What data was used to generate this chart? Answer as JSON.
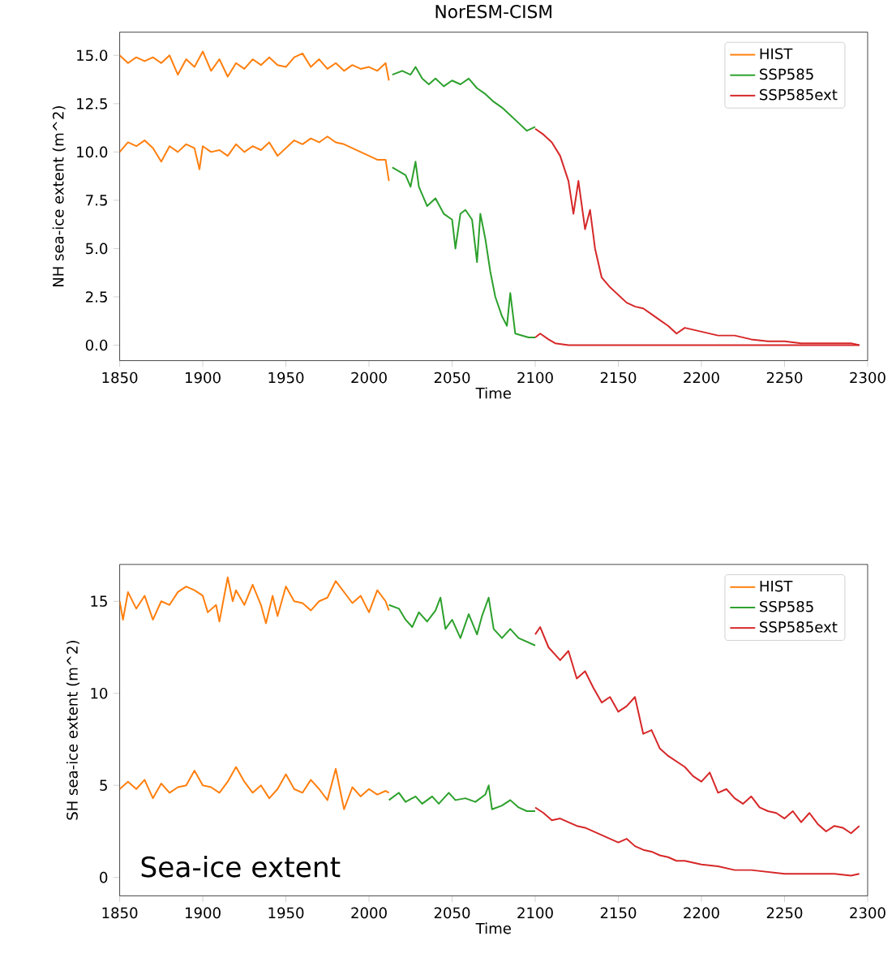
{
  "chart_data": [
    {
      "type": "line",
      "title": "NorESM-CISM",
      "xlabel": "Time",
      "ylabel": "NH sea-ice extent (m^2)",
      "xlim": [
        1850,
        2300
      ],
      "ylim": [
        -0.8,
        16.2
      ],
      "xticks": [
        1850,
        1900,
        1950,
        2000,
        2050,
        2100,
        2150,
        2200,
        2250,
        2300
      ],
      "yticks": [
        {
          "value": 0,
          "label": "0.0"
        },
        {
          "value": 2.5,
          "label": "2.5"
        },
        {
          "value": 5,
          "label": "5.0"
        },
        {
          "value": 7.5,
          "label": "7.5"
        },
        {
          "value": 10,
          "label": "10.0"
        },
        {
          "value": 12.5,
          "label": "12.5"
        },
        {
          "value": 15,
          "label": "15.0"
        }
      ],
      "legend": "top right",
      "series": [
        {
          "name": "HIST",
          "color": "#ff7f0e",
          "x": [
            1850,
            1855,
            1860,
            1865,
            1870,
            1875,
            1880,
            1885,
            1890,
            1895,
            1900,
            1905,
            1910,
            1915,
            1920,
            1925,
            1930,
            1935,
            1940,
            1945,
            1950,
            1955,
            1960,
            1965,
            1970,
            1975,
            1980,
            1985,
            1990,
            1995,
            2000,
            2005,
            2010,
            2012
          ],
          "values": [
            15.0,
            14.6,
            14.9,
            14.7,
            14.9,
            14.6,
            15.0,
            14.0,
            14.8,
            14.4,
            15.2,
            14.2,
            14.8,
            13.9,
            14.6,
            14.3,
            14.8,
            14.5,
            14.9,
            14.5,
            14.4,
            14.9,
            15.1,
            14.4,
            14.8,
            14.3,
            14.6,
            14.2,
            14.5,
            14.3,
            14.4,
            14.2,
            14.6,
            13.7
          ]
        },
        {
          "color": "#ff7f0e",
          "x": [
            1850,
            1855,
            1860,
            1865,
            1870,
            1875,
            1880,
            1885,
            1890,
            1895,
            1898,
            1900,
            1905,
            1910,
            1915,
            1920,
            1925,
            1930,
            1935,
            1940,
            1945,
            1950,
            1955,
            1960,
            1965,
            1970,
            1975,
            1980,
            1985,
            1990,
            1995,
            2000,
            2005,
            2010,
            2012
          ],
          "values": [
            10.0,
            10.5,
            10.3,
            10.6,
            10.2,
            9.5,
            10.3,
            10.0,
            10.4,
            10.2,
            9.1,
            10.3,
            10.0,
            10.1,
            9.8,
            10.4,
            10.0,
            10.3,
            10.1,
            10.5,
            9.8,
            10.2,
            10.6,
            10.4,
            10.7,
            10.5,
            10.8,
            10.5,
            10.4,
            10.2,
            10.0,
            9.8,
            9.6,
            9.6,
            8.5
          ]
        },
        {
          "name": "SSP585",
          "color": "#2ca02c",
          "x": [
            2014,
            2020,
            2025,
            2028,
            2032,
            2036,
            2040,
            2045,
            2050,
            2055,
            2060,
            2065,
            2070,
            2075,
            2080,
            2085,
            2090,
            2095,
            2100
          ],
          "values": [
            14.0,
            14.2,
            14.0,
            14.4,
            13.8,
            13.5,
            13.8,
            13.4,
            13.7,
            13.5,
            13.8,
            13.3,
            13.0,
            12.6,
            12.3,
            11.9,
            11.5,
            11.1,
            11.3
          ]
        },
        {
          "color": "#2ca02c",
          "x": [
            2014,
            2018,
            2022,
            2025,
            2028,
            2030,
            2035,
            2040,
            2045,
            2050,
            2052,
            2055,
            2058,
            2062,
            2065,
            2067,
            2070,
            2073,
            2076,
            2080,
            2083,
            2085,
            2088,
            2092,
            2096,
            2100
          ],
          "values": [
            9.2,
            9.0,
            8.8,
            8.2,
            9.5,
            8.2,
            7.2,
            7.6,
            6.8,
            6.5,
            5.0,
            6.8,
            7.0,
            6.5,
            4.3,
            6.8,
            5.5,
            3.8,
            2.5,
            1.5,
            1.0,
            2.7,
            0.6,
            0.5,
            0.4,
            0.4
          ]
        },
        {
          "name": "SSP585ext",
          "color": "#d62728",
          "x": [
            2100,
            2105,
            2110,
            2115,
            2120,
            2123,
            2126,
            2130,
            2133,
            2136,
            2140,
            2145,
            2150,
            2155,
            2160,
            2165,
            2170,
            2175,
            2180,
            2185,
            2190,
            2200,
            2210,
            2220,
            2230,
            2240,
            2250,
            2260,
            2270,
            2280,
            2290,
            2295
          ],
          "values": [
            11.2,
            10.9,
            10.5,
            9.8,
            8.5,
            6.8,
            8.5,
            6.0,
            7.0,
            5.0,
            3.5,
            3.0,
            2.6,
            2.2,
            2.0,
            1.9,
            1.6,
            1.3,
            1.0,
            0.6,
            0.9,
            0.7,
            0.5,
            0.5,
            0.3,
            0.2,
            0.2,
            0.1,
            0.1,
            0.1,
            0.1,
            0.0
          ]
        },
        {
          "color": "#d62728",
          "x": [
            2100,
            2103,
            2108,
            2112,
            2120,
            2150,
            2200,
            2250,
            2295
          ],
          "values": [
            0.4,
            0.6,
            0.3,
            0.1,
            0.0,
            0.0,
            0.0,
            0.0,
            0.0
          ]
        }
      ]
    },
    {
      "type": "line",
      "xlabel": "Time",
      "ylabel": "SH sea-ice extent (m^2)",
      "xlim": [
        1850,
        2300
      ],
      "ylim": [
        -1,
        17
      ],
      "xticks": [
        1850,
        1900,
        1950,
        2000,
        2050,
        2100,
        2150,
        2200,
        2250,
        2300
      ],
      "yticks": [
        0,
        5,
        10,
        15
      ],
      "legend": "top right",
      "annotations": [
        "Sea-ice extent"
      ],
      "series": [
        {
          "name": "HIST",
          "color": "#ff7f0e",
          "x": [
            1850,
            1852,
            1855,
            1860,
            1865,
            1870,
            1875,
            1880,
            1885,
            1890,
            1895,
            1900,
            1903,
            1908,
            1910,
            1915,
            1918,
            1920,
            1925,
            1930,
            1935,
            1938,
            1942,
            1945,
            1950,
            1955,
            1960,
            1965,
            1970,
            1975,
            1980,
            1985,
            1990,
            1995,
            2000,
            2005,
            2010,
            2012
          ],
          "values": [
            15.0,
            14.0,
            15.5,
            14.6,
            15.3,
            14.0,
            15.0,
            14.8,
            15.5,
            15.8,
            15.6,
            15.3,
            14.4,
            14.8,
            13.9,
            16.3,
            15.0,
            15.6,
            14.8,
            15.9,
            14.8,
            13.8,
            15.3,
            14.2,
            15.8,
            15.0,
            14.9,
            14.5,
            15.0,
            15.2,
            16.1,
            15.5,
            14.9,
            15.3,
            14.4,
            15.6,
            15.0,
            14.5
          ]
        },
        {
          "color": "#ff7f0e",
          "x": [
            1850,
            1855,
            1860,
            1865,
            1870,
            1875,
            1880,
            1885,
            1890,
            1895,
            1900,
            1905,
            1910,
            1915,
            1920,
            1925,
            1930,
            1935,
            1940,
            1945,
            1950,
            1955,
            1960,
            1965,
            1970,
            1975,
            1980,
            1985,
            1990,
            1995,
            2000,
            2005,
            2010,
            2012
          ],
          "values": [
            4.8,
            5.2,
            4.8,
            5.3,
            4.3,
            5.1,
            4.6,
            4.9,
            5.0,
            5.8,
            5.0,
            4.9,
            4.6,
            5.2,
            6.0,
            5.2,
            4.6,
            5.0,
            4.3,
            4.8,
            5.6,
            4.8,
            4.6,
            5.3,
            4.8,
            4.2,
            5.9,
            3.7,
            4.9,
            4.4,
            4.8,
            4.5,
            4.7,
            4.6
          ]
        },
        {
          "name": "SSP585",
          "color": "#2ca02c",
          "x": [
            2012,
            2018,
            2022,
            2026,
            2030,
            2035,
            2040,
            2043,
            2046,
            2050,
            2055,
            2060,
            2065,
            2068,
            2072,
            2075,
            2080,
            2085,
            2090,
            2095,
            2100
          ],
          "values": [
            14.8,
            14.6,
            14.0,
            13.6,
            14.4,
            13.9,
            14.5,
            15.2,
            13.5,
            14.0,
            13.0,
            14.3,
            13.2,
            14.2,
            15.2,
            13.5,
            13.0,
            13.5,
            13.0,
            12.8,
            12.6
          ]
        },
        {
          "color": "#2ca02c",
          "x": [
            2012,
            2018,
            2022,
            2028,
            2032,
            2038,
            2042,
            2048,
            2052,
            2058,
            2064,
            2070,
            2072,
            2074,
            2080,
            2085,
            2090,
            2095,
            2100
          ],
          "values": [
            4.2,
            4.6,
            4.1,
            4.4,
            4.0,
            4.4,
            4.0,
            4.6,
            4.2,
            4.3,
            4.1,
            4.5,
            5.0,
            3.7,
            3.9,
            4.2,
            3.8,
            3.6,
            3.6
          ]
        },
        {
          "name": "SSP585ext",
          "color": "#d62728",
          "x": [
            2100,
            2103,
            2108,
            2115,
            2120,
            2125,
            2130,
            2135,
            2140,
            2145,
            2150,
            2155,
            2160,
            2165,
            2170,
            2175,
            2180,
            2185,
            2190,
            2195,
            2200,
            2205,
            2210,
            2215,
            2220,
            2225,
            2230,
            2235,
            2240,
            2245,
            2250,
            2255,
            2260,
            2265,
            2270,
            2275,
            2280,
            2285,
            2290,
            2295
          ],
          "values": [
            13.2,
            13.6,
            12.5,
            11.8,
            12.3,
            10.8,
            11.2,
            10.3,
            9.5,
            9.8,
            9.0,
            9.3,
            9.8,
            7.8,
            8.0,
            7.0,
            6.6,
            6.3,
            6.0,
            5.5,
            5.2,
            5.7,
            4.6,
            4.8,
            4.3,
            4.0,
            4.4,
            3.8,
            3.6,
            3.5,
            3.2,
            3.6,
            3.0,
            3.5,
            2.9,
            2.5,
            2.8,
            2.7,
            2.4,
            2.8
          ]
        },
        {
          "color": "#d62728",
          "x": [
            2100,
            2105,
            2110,
            2115,
            2120,
            2125,
            2130,
            2135,
            2140,
            2145,
            2150,
            2155,
            2160,
            2165,
            2170,
            2175,
            2180,
            2185,
            2190,
            2195,
            2200,
            2210,
            2220,
            2230,
            2240,
            2250,
            2260,
            2270,
            2280,
            2290,
            2295
          ],
          "values": [
            3.8,
            3.5,
            3.1,
            3.2,
            3.0,
            2.8,
            2.7,
            2.5,
            2.3,
            2.1,
            1.9,
            2.1,
            1.7,
            1.5,
            1.4,
            1.2,
            1.1,
            0.9,
            0.9,
            0.8,
            0.7,
            0.6,
            0.4,
            0.4,
            0.3,
            0.2,
            0.2,
            0.2,
            0.2,
            0.1,
            0.2
          ]
        }
      ]
    }
  ]
}
